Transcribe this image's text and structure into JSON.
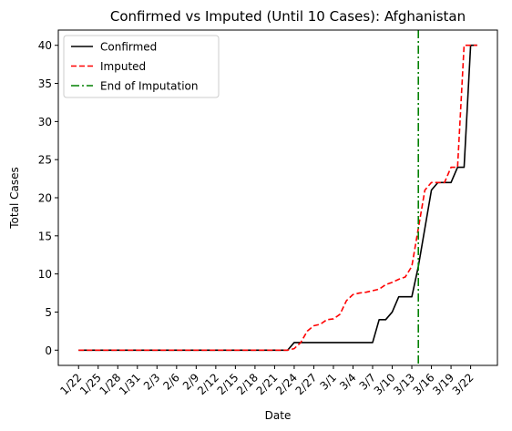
{
  "chart_data": {
    "type": "line",
    "title": "Confirmed vs Imputed (Until 10 Cases): Afghanistan",
    "xlabel": "Date",
    "ylabel": "Total Cases",
    "ylim": [
      -2,
      42
    ],
    "yticks": [
      0,
      5,
      10,
      15,
      20,
      25,
      30,
      35,
      40
    ],
    "dates": [
      "1/22",
      "1/23",
      "1/24",
      "1/25",
      "1/26",
      "1/27",
      "1/28",
      "1/29",
      "1/30",
      "1/31",
      "2/1",
      "2/2",
      "2/3",
      "2/4",
      "2/5",
      "2/6",
      "2/7",
      "2/8",
      "2/9",
      "2/10",
      "2/11",
      "2/12",
      "2/13",
      "2/14",
      "2/15",
      "2/16",
      "2/17",
      "2/18",
      "2/19",
      "2/20",
      "2/21",
      "2/22",
      "2/23",
      "2/24",
      "2/25",
      "2/26",
      "2/27",
      "2/28",
      "2/29",
      "3/1",
      "3/2",
      "3/3",
      "3/4",
      "3/5",
      "3/6",
      "3/7",
      "3/8",
      "3/9",
      "3/10",
      "3/11",
      "3/12",
      "3/13",
      "3/14",
      "3/15",
      "3/16",
      "3/17",
      "3/18",
      "3/19",
      "3/20",
      "3/21",
      "3/22",
      "3/23"
    ],
    "xtick_labels": [
      "1/22",
      "1/25",
      "1/28",
      "1/31",
      "2/3",
      "2/6",
      "2/9",
      "2/12",
      "2/15",
      "2/18",
      "2/21",
      "2/24",
      "2/27",
      "3/1",
      "3/4",
      "3/7",
      "3/10",
      "3/13",
      "3/16",
      "3/19",
      "3/22"
    ],
    "grid": false,
    "legend_position": "top-left",
    "series": [
      {
        "name": "Confirmed",
        "color": "#000000",
        "style": "solid",
        "values": [
          0,
          0,
          0,
          0,
          0,
          0,
          0,
          0,
          0,
          0,
          0,
          0,
          0,
          0,
          0,
          0,
          0,
          0,
          0,
          0,
          0,
          0,
          0,
          0,
          0,
          0,
          0,
          0,
          0,
          0,
          0,
          0,
          0,
          1,
          1,
          1,
          1,
          1,
          1,
          1,
          1,
          1,
          1,
          1,
          1,
          1,
          4,
          4,
          5,
          7,
          7,
          7,
          11,
          16,
          21,
          22,
          22,
          22,
          24,
          24,
          40,
          40
        ]
      },
      {
        "name": "Imputed",
        "color": "#ff0000",
        "style": "dashed",
        "values": [
          0,
          0,
          0,
          0,
          0,
          0,
          0,
          0,
          0,
          0,
          0,
          0,
          0,
          0,
          0,
          0,
          0,
          0,
          0,
          0,
          0,
          0,
          0,
          0,
          0,
          0,
          0,
          0,
          0,
          0,
          0,
          0,
          0,
          0.2,
          1,
          2.5,
          3.2,
          3.4,
          4,
          4.1,
          4.7,
          6.5,
          7.3,
          7.5,
          7.6,
          7.8,
          8,
          8.6,
          8.9,
          9.3,
          9.6,
          11,
          16,
          21,
          22,
          22,
          22,
          24,
          24,
          40,
          40,
          40
        ]
      }
    ],
    "vline": {
      "name": "End of Imputation",
      "date": "3/14",
      "color": "#008000",
      "style": "dashdot"
    }
  }
}
